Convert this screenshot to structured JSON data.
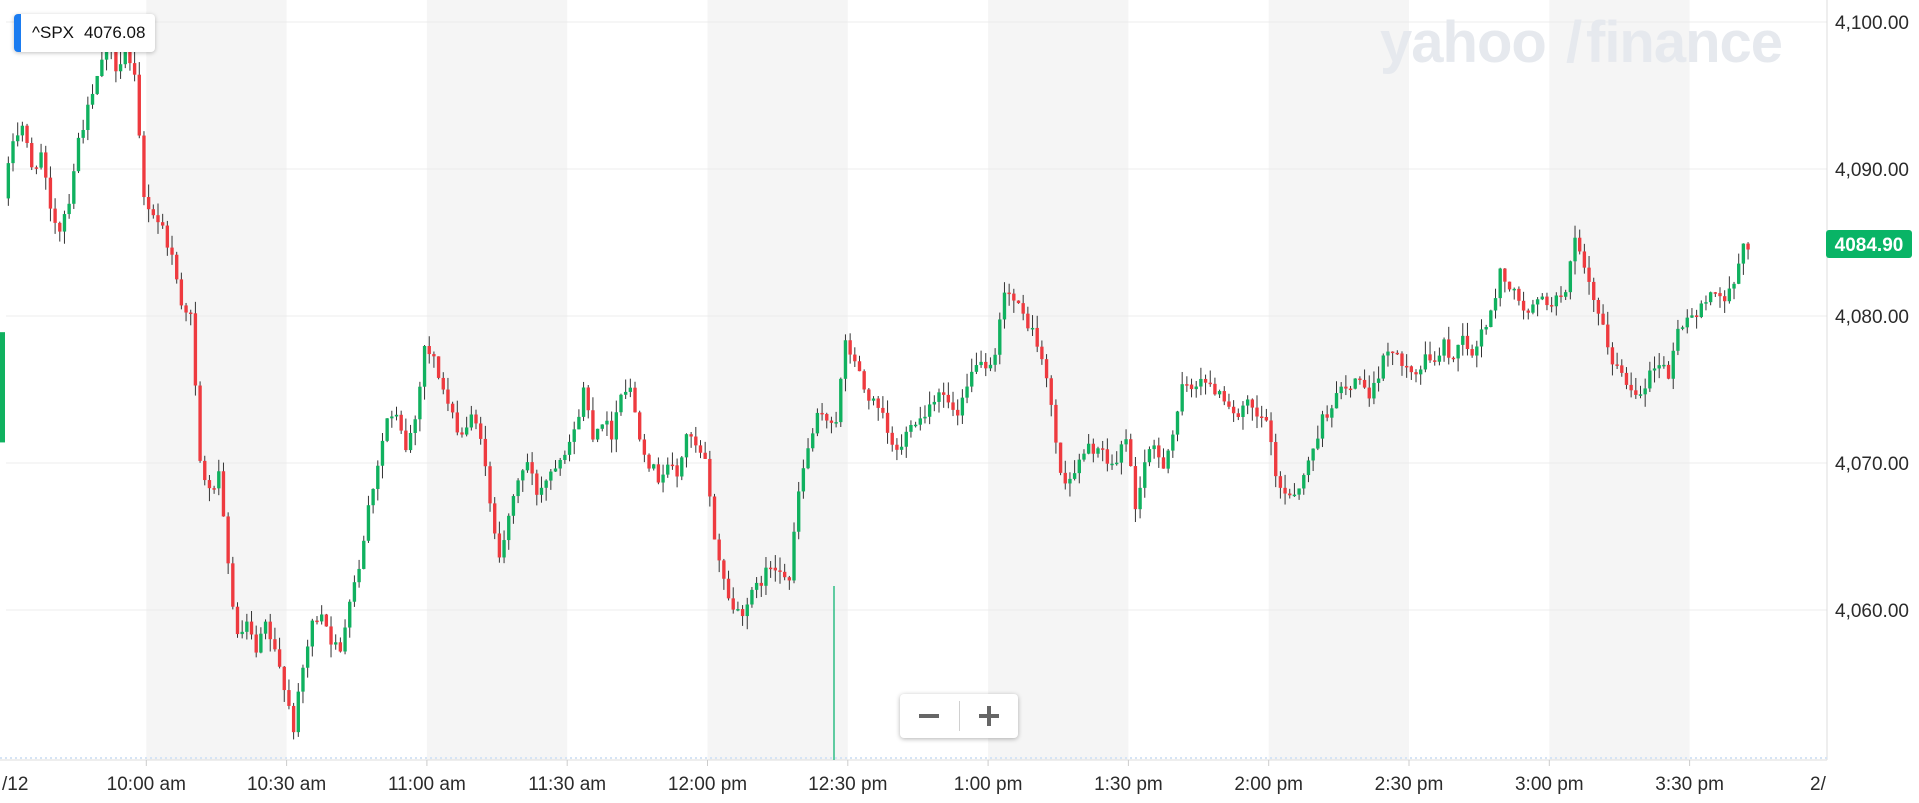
{
  "legend": {
    "symbol": "^SPX",
    "value": "4076.08",
    "swatch_color": "#1b7cf0"
  },
  "watermark": {
    "text_left": "yahoo",
    "slash": "/",
    "text_right": "finance"
  },
  "last_price": {
    "value": "4084.90",
    "y": 4084.9,
    "color": "#09b466"
  },
  "zoom": {
    "minus": "−",
    "plus": "+"
  },
  "colors": {
    "up": "#10b15f",
    "down": "#ee3a3f",
    "wick": "#333333",
    "band": "#f5f5f5",
    "grid": "#ececec"
  },
  "chart_data": {
    "type": "candlestick",
    "y_axis": {
      "ticks": [
        4060,
        4070,
        4080,
        4090,
        4100
      ],
      "tick_labels": [
        "4,060.00",
        "4,070.00",
        "4,080.00",
        "4,090.00",
        "4,100.00"
      ],
      "range": [
        4051,
        4101.5
      ],
      "side": "right"
    },
    "x_axis": {
      "unit": "minutes since 9:30 am",
      "range": [
        0,
        390
      ],
      "ticks": [
        {
          "t": 30,
          "label": "10:00 am"
        },
        {
          "t": 60,
          "label": "10:30 am"
        },
        {
          "t": 90,
          "label": "11:00 am"
        },
        {
          "t": 120,
          "label": "11:30 am"
        },
        {
          "t": 150,
          "label": "12:00 pm"
        },
        {
          "t": 180,
          "label": "12:30 pm"
        },
        {
          "t": 210,
          "label": "1:00 pm"
        },
        {
          "t": 240,
          "label": "1:30 pm"
        },
        {
          "t": 270,
          "label": "2:00 pm"
        },
        {
          "t": 300,
          "label": "2:30 pm"
        },
        {
          "t": 330,
          "label": "3:00 pm"
        },
        {
          "t": 360,
          "label": "3:30 pm"
        }
      ],
      "edge_labels": {
        "left": "/12",
        "right": "2/"
      }
    },
    "grid": true,
    "legend_position": "top-left",
    "anchors": [
      [
        0,
        4088
      ],
      [
        2,
        4092
      ],
      [
        4,
        4093
      ],
      [
        6,
        4090
      ],
      [
        8,
        4091
      ],
      [
        10,
        4087
      ],
      [
        12,
        4086
      ],
      [
        14,
        4088
      ],
      [
        16,
        4092
      ],
      [
        18,
        4094
      ],
      [
        20,
        4096
      ],
      [
        22,
        4099
      ],
      [
        24,
        4097
      ],
      [
        26,
        4098
      ],
      [
        28,
        4096
      ],
      [
        30,
        4088
      ],
      [
        32,
        4087
      ],
      [
        34,
        4086
      ],
      [
        36,
        4084
      ],
      [
        38,
        4081
      ],
      [
        40,
        4080
      ],
      [
        42,
        4070
      ],
      [
        44,
        4068
      ],
      [
        46,
        4069
      ],
      [
        48,
        4063
      ],
      [
        50,
        4058
      ],
      [
        52,
        4059
      ],
      [
        54,
        4057
      ],
      [
        56,
        4059
      ],
      [
        58,
        4057
      ],
      [
        60,
        4055
      ],
      [
        62,
        4052
      ],
      [
        64,
        4056
      ],
      [
        66,
        4059
      ],
      [
        68,
        4060
      ],
      [
        70,
        4058
      ],
      [
        72,
        4057
      ],
      [
        74,
        4061
      ],
      [
        76,
        4063
      ],
      [
        78,
        4067
      ],
      [
        80,
        4070
      ],
      [
        82,
        4073
      ],
      [
        84,
        4073
      ],
      [
        86,
        4071
      ],
      [
        88,
        4073
      ],
      [
        90,
        4078
      ],
      [
        92,
        4077
      ],
      [
        94,
        4075
      ],
      [
        96,
        4073
      ],
      [
        98,
        4072
      ],
      [
        100,
        4073
      ],
      [
        102,
        4072
      ],
      [
        104,
        4067
      ],
      [
        106,
        4064
      ],
      [
        108,
        4066
      ],
      [
        110,
        4069
      ],
      [
        112,
        4070
      ],
      [
        114,
        4068
      ],
      [
        116,
        4069
      ],
      [
        118,
        4070
      ],
      [
        120,
        4071
      ],
      [
        122,
        4072
      ],
      [
        124,
        4075
      ],
      [
        126,
        4072
      ],
      [
        128,
        4073
      ],
      [
        130,
        4072
      ],
      [
        132,
        4075
      ],
      [
        134,
        4075
      ],
      [
        136,
        4072
      ],
      [
        138,
        4070
      ],
      [
        140,
        4069
      ],
      [
        142,
        4070
      ],
      [
        144,
        4069
      ],
      [
        146,
        4072
      ],
      [
        148,
        4071
      ],
      [
        150,
        4070
      ],
      [
        152,
        4065
      ],
      [
        154,
        4062
      ],
      [
        156,
        4060
      ],
      [
        158,
        4060
      ],
      [
        160,
        4061
      ],
      [
        162,
        4062
      ],
      [
        164,
        4063
      ],
      [
        166,
        4063
      ],
      [
        168,
        4062
      ],
      [
        170,
        4068
      ],
      [
        172,
        4071
      ],
      [
        174,
        4073
      ],
      [
        176,
        4073
      ],
      [
        178,
        4073
      ],
      [
        180,
        4078
      ],
      [
        182,
        4077
      ],
      [
        184,
        4075
      ],
      [
        186,
        4074
      ],
      [
        188,
        4073
      ],
      [
        190,
        4071
      ],
      [
        192,
        4071
      ],
      [
        194,
        4073
      ],
      [
        196,
        4073
      ],
      [
        198,
        4074
      ],
      [
        200,
        4075
      ],
      [
        202,
        4074
      ],
      [
        204,
        4073
      ],
      [
        206,
        4075
      ],
      [
        208,
        4077
      ],
      [
        210,
        4076
      ],
      [
        212,
        4077
      ],
      [
        214,
        4082
      ],
      [
        216,
        4081
      ],
      [
        218,
        4080
      ],
      [
        220,
        4079
      ],
      [
        222,
        4077
      ],
      [
        224,
        4074
      ],
      [
        226,
        4069
      ],
      [
        228,
        4069
      ],
      [
        230,
        4070
      ],
      [
        232,
        4071
      ],
      [
        234,
        4071
      ],
      [
        236,
        4070
      ],
      [
        238,
        4070
      ],
      [
        240,
        4072
      ],
      [
        242,
        4067
      ],
      [
        244,
        4070
      ],
      [
        246,
        4071
      ],
      [
        248,
        4070
      ],
      [
        250,
        4072
      ],
      [
        252,
        4075
      ],
      [
        254,
        4075
      ],
      [
        256,
        4076
      ],
      [
        258,
        4075
      ],
      [
        260,
        4075
      ],
      [
        262,
        4074
      ],
      [
        264,
        4073
      ],
      [
        266,
        4074
      ],
      [
        268,
        4073
      ],
      [
        270,
        4073
      ],
      [
        272,
        4069
      ],
      [
        274,
        4068
      ],
      [
        276,
        4068
      ],
      [
        278,
        4069
      ],
      [
        280,
        4071
      ],
      [
        282,
        4073
      ],
      [
        284,
        4074
      ],
      [
        286,
        4075
      ],
      [
        288,
        4075
      ],
      [
        290,
        4076
      ],
      [
        292,
        4074
      ],
      [
        294,
        4076
      ],
      [
        296,
        4078
      ],
      [
        298,
        4077
      ],
      [
        300,
        4077
      ],
      [
        302,
        4076
      ],
      [
        304,
        4077
      ],
      [
        306,
        4077
      ],
      [
        308,
        4078
      ],
      [
        310,
        4077
      ],
      [
        312,
        4079
      ],
      [
        314,
        4077
      ],
      [
        316,
        4079
      ],
      [
        318,
        4080
      ],
      [
        320,
        4083
      ],
      [
        322,
        4082
      ],
      [
        324,
        4081
      ],
      [
        326,
        4080
      ],
      [
        328,
        4081
      ],
      [
        330,
        4081
      ],
      [
        332,
        4081
      ],
      [
        334,
        4082
      ],
      [
        336,
        4085
      ],
      [
        338,
        4083
      ],
      [
        340,
        4081
      ],
      [
        342,
        4079
      ],
      [
        344,
        4077
      ],
      [
        346,
        4076
      ],
      [
        348,
        4075
      ],
      [
        350,
        4075
      ],
      [
        352,
        4076
      ],
      [
        354,
        4077
      ],
      [
        356,
        4076
      ],
      [
        358,
        4079
      ],
      [
        360,
        4080
      ],
      [
        362,
        4080
      ],
      [
        364,
        4081
      ],
      [
        366,
        4082
      ],
      [
        368,
        4081
      ],
      [
        370,
        4082
      ],
      [
        372,
        4084.9
      ]
    ]
  }
}
